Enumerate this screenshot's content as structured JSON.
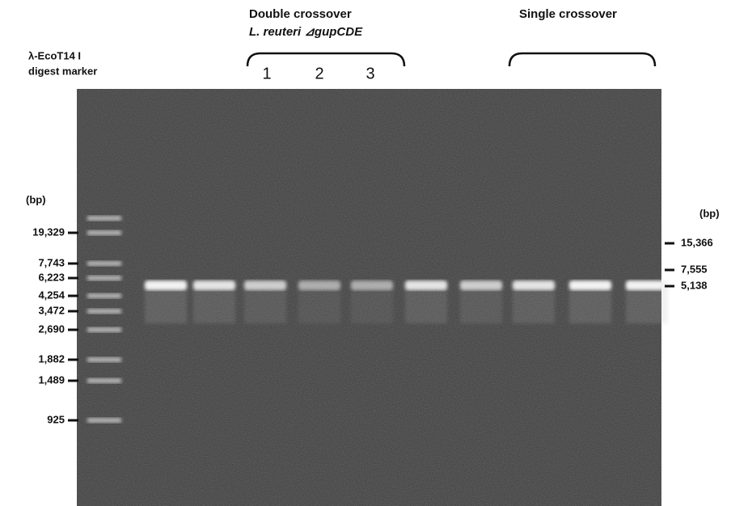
{
  "header": {
    "double_crossover": "Double crossover",
    "strain": "L. reuteri ⊿gupCDE",
    "single_crossover": "Single crossover",
    "marker_line1": "λ-EcoT14 I",
    "marker_line2": "digest marker"
  },
  "lanes": [
    "1",
    "2",
    "3"
  ],
  "left_axis": {
    "unit": "(bp)",
    "sizes": [
      "19,329",
      "7,743",
      "6,223",
      "4,254",
      "3,472",
      "2,690",
      "1,882",
      "1,489",
      "925"
    ]
  },
  "right_axis": {
    "unit": "(bp)",
    "sizes": [
      "15,366",
      "7,555",
      "5,138"
    ]
  }
}
